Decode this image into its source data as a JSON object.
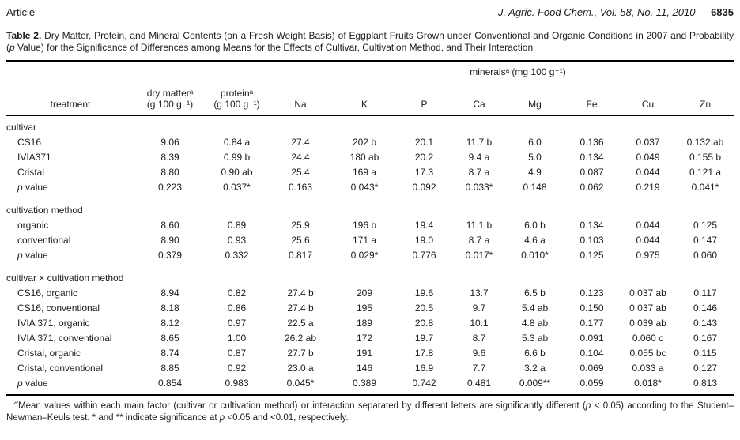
{
  "page_header": {
    "article_label": "Article",
    "journal_citation": "J. Agric. Food Chem., Vol. 58, No. 11, 2010",
    "page_number": "6835"
  },
  "caption_parts": [
    {
      "t": "Table 2.",
      "b": true
    },
    {
      "t": "  Dry Matter, Protein, and Mineral Contents (on a Fresh Weight Basis) of Eggplant Fruits Grown under Conventional and Organic Conditions in 2007 and Probability ("
    },
    {
      "t": "p",
      "i": true
    },
    {
      "t": " Value) for the Significance of Differences among Means for the Effects of Cultivar, Cultivation Method, and Their Interaction"
    }
  ],
  "table": {
    "minerals_group_label": "mineralsᵃ (mg 100 g⁻¹)",
    "columns": [
      {
        "id": "treatment",
        "label_lines": [
          "treatment"
        ]
      },
      {
        "id": "dry-matter",
        "label_lines": [
          "dry matterᵃ",
          "(g 100 g⁻¹)"
        ]
      },
      {
        "id": "protein",
        "label_lines": [
          "proteinᵃ",
          "(g 100 g⁻¹)"
        ]
      },
      {
        "id": "na",
        "label_lines": [
          "Na"
        ]
      },
      {
        "id": "k",
        "label_lines": [
          "K"
        ]
      },
      {
        "id": "p",
        "label_lines": [
          "P"
        ]
      },
      {
        "id": "ca",
        "label_lines": [
          "Ca"
        ]
      },
      {
        "id": "mg",
        "label_lines": [
          "Mg"
        ]
      },
      {
        "id": "fe",
        "label_lines": [
          "Fe"
        ]
      },
      {
        "id": "cu",
        "label_lines": [
          "Cu"
        ]
      },
      {
        "id": "zn",
        "label_lines": [
          "Zn"
        ]
      }
    ],
    "sections": [
      {
        "header": "cultivar",
        "rows": [
          {
            "label": "CS16",
            "values": [
              "9.06",
              "0.84 a",
              "27.4",
              "202 b",
              "20.1",
              "11.7 b",
              "6.0",
              "0.136",
              "0.037",
              "0.132 ab"
            ]
          },
          {
            "label": "IVIA371",
            "values": [
              "8.39",
              "0.99 b",
              "24.4",
              "180 ab",
              "20.2",
              "9.4 a",
              "5.0",
              "0.134",
              "0.049",
              "0.155 b"
            ]
          },
          {
            "label": "Cristal",
            "values": [
              "8.80",
              "0.90 ab",
              "25.4",
              "169 a",
              "17.3",
              "8.7 a",
              "4.9",
              "0.087",
              "0.044",
              "0.121 a"
            ]
          },
          {
            "label_parts": [
              {
                "t": "p",
                "i": true
              },
              {
                "t": " value"
              }
            ],
            "values": [
              "0.223",
              "0.037*",
              "0.163",
              "0.043*",
              "0.092",
              "0.033*",
              "0.148",
              "0.062",
              "0.219",
              "0.041*"
            ]
          }
        ]
      },
      {
        "header": "cultivation method",
        "rows": [
          {
            "label": "organic",
            "values": [
              "8.60",
              "0.89",
              "25.9",
              "196 b",
              "19.4",
              "11.1 b",
              "6.0 b",
              "0.134",
              "0.044",
              "0.125"
            ]
          },
          {
            "label": "conventional",
            "values": [
              "8.90",
              "0.93",
              "25.6",
              "171 a",
              "19.0",
              "8.7 a",
              "4.6 a",
              "0.103",
              "0.044",
              "0.147"
            ]
          },
          {
            "label_parts": [
              {
                "t": "p",
                "i": true
              },
              {
                "t": " value"
              }
            ],
            "values": [
              "0.379",
              "0.332",
              "0.817",
              "0.029*",
              "0.776",
              "0.017*",
              "0.010*",
              "0.125",
              "0.975",
              "0.060"
            ]
          }
        ]
      },
      {
        "header": "cultivar × cultivation method",
        "rows": [
          {
            "label": "CS16, organic",
            "values": [
              "8.94",
              "0.82",
              "27.4 b",
              "209",
              "19.6",
              "13.7",
              "6.5 b",
              "0.123",
              "0.037 ab",
              "0.117"
            ]
          },
          {
            "label": "CS16, conventional",
            "values": [
              "8.18",
              "0.86",
              "27.4 b",
              "195",
              "20.5",
              "9.7",
              "5.4 ab",
              "0.150",
              "0.037 ab",
              "0.146"
            ]
          },
          {
            "label": "IVIA 371, organic",
            "values": [
              "8.12",
              "0.97",
              "22.5 a",
              "189",
              "20.8",
              "10.1",
              "4.8 ab",
              "0.177",
              "0.039 ab",
              "0.143"
            ]
          },
          {
            "label": "IVIA 371, conventional",
            "values": [
              "8.65",
              "1.00",
              "26.2 ab",
              "172",
              "19.7",
              "8.7",
              "5.3 ab",
              "0.091",
              "0.060 c",
              "0.167"
            ]
          },
          {
            "label": "Cristal, organic",
            "values": [
              "8.74",
              "0.87",
              "27.7 b",
              "191",
              "17.8",
              "9.6",
              "6.6 b",
              "0.104",
              "0.055 bc",
              "0.115"
            ]
          },
          {
            "label": "Cristal, conventional",
            "values": [
              "8.85",
              "0.92",
              "23.0 a",
              "146",
              "16.9",
              "7.7",
              "3.2 a",
              "0.069",
              "0.033 a",
              "0.127"
            ]
          },
          {
            "label_parts": [
              {
                "t": "p",
                "i": true
              },
              {
                "t": " value"
              }
            ],
            "values": [
              "0.854",
              "0.983",
              "0.045*",
              "0.389",
              "0.742",
              "0.481",
              "0.009**",
              "0.059",
              "0.018*",
              "0.813"
            ]
          }
        ]
      }
    ]
  },
  "footnote_parts": [
    {
      "t": "a",
      "sup": true,
      "i": true
    },
    {
      "t": "Mean values within each main factor (cultivar or cultivation method) or interaction separated by different letters are significantly different ("
    },
    {
      "t": "p",
      "i": true
    },
    {
      "t": " < 0.05) according to the Student–Newman–Keuls test. * and ** indicate significance at "
    },
    {
      "t": "p",
      "i": true
    },
    {
      "t": " <0.05 and <0.01, respectively."
    }
  ]
}
